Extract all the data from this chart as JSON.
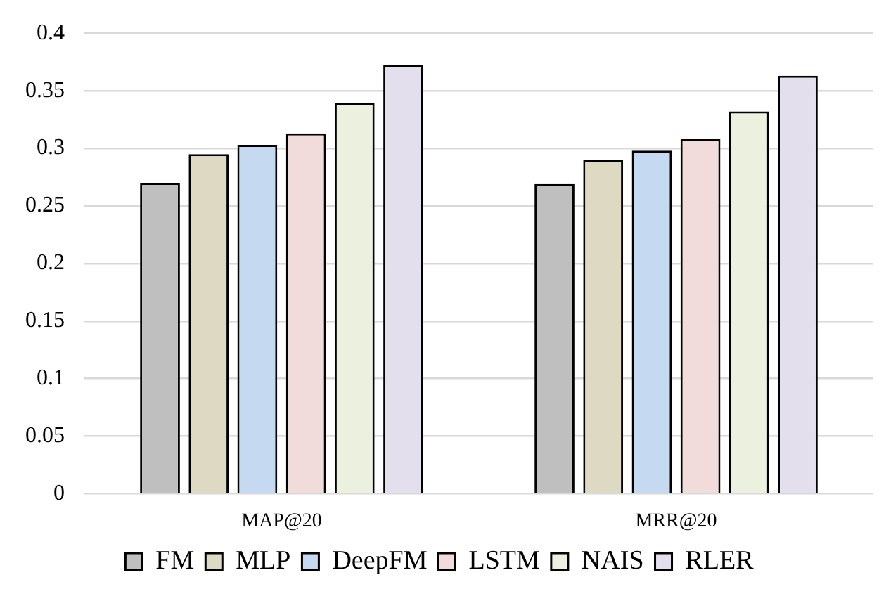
{
  "chart_data": {
    "type": "bar",
    "categories": [
      "MAP@20",
      "MRR@20"
    ],
    "series": [
      {
        "name": "FM",
        "color": "#bfbfbf",
        "values": [
          0.27,
          0.269
        ]
      },
      {
        "name": "MLP",
        "color": "#ddd9c3",
        "values": [
          0.295,
          0.29
        ]
      },
      {
        "name": "DeepFM",
        "color": "#c5d9f1",
        "values": [
          0.303,
          0.298
        ]
      },
      {
        "name": "LSTM",
        "color": "#f2dcdb",
        "values": [
          0.313,
          0.308
        ]
      },
      {
        "name": "NAIS",
        "color": "#ebf1de",
        "values": [
          0.339,
          0.332
        ]
      },
      {
        "name": "RLER",
        "color": "#e4dfec",
        "values": [
          0.372,
          0.363
        ]
      }
    ],
    "ylim": [
      0,
      0.4
    ],
    "yticks": [
      0,
      0.05,
      0.1,
      0.15,
      0.2,
      0.25,
      0.3,
      0.35,
      0.4
    ],
    "grid": "y",
    "legend": "bottom"
  }
}
